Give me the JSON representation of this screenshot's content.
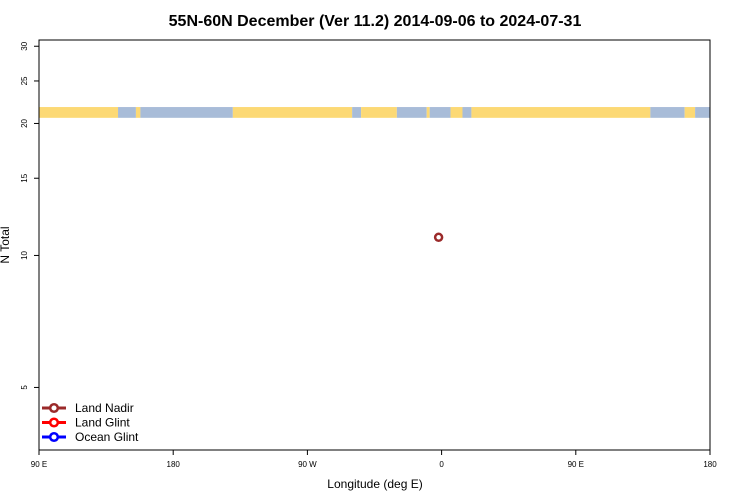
{
  "chart_data": {
    "type": "scatter",
    "title": "55N-60N December (Ver 11.2)   2014-09-06 to 2024-07-31",
    "xlabel": "Longitude (deg E)",
    "ylabel": "N Total",
    "x_axis_note": "longitude runs from 90 E through 180, 90 W, 0, 90 E to 180 (wrapped)",
    "xlim": [
      90,
      540
    ],
    "x_ticks": [
      {
        "value": 90,
        "label": "90 E"
      },
      {
        "value": 180,
        "label": "180"
      },
      {
        "value": 270,
        "label": "90 W"
      },
      {
        "value": 360,
        "label": "0"
      },
      {
        "value": 450,
        "label": "90 E"
      },
      {
        "value": 540,
        "label": "180"
      }
    ],
    "y_scale": "log",
    "ylim": [
      3.6,
      31
    ],
    "y_ticks": [
      5,
      10,
      15,
      20,
      25,
      30
    ],
    "grid": false,
    "legend_position": "bottom-left",
    "series": [
      {
        "name": "Land Nadir",
        "color": "#9b2a2a",
        "points": [
          {
            "lon": -2,
            "n": 11
          }
        ]
      },
      {
        "name": "Land Glint",
        "color": "#ff0000",
        "points": []
      },
      {
        "name": "Ocean Glint",
        "color": "#0000ff",
        "points": []
      }
    ],
    "land_mask_strip": {
      "y_range": [
        20.6,
        21.8
      ],
      "land_color": "#fcd975",
      "ocean_color": "#a8bcd8",
      "segments": [
        {
          "start": 90,
          "end": 143,
          "type": "land"
        },
        {
          "start": 143,
          "end": 155,
          "type": "ocean"
        },
        {
          "start": 155,
          "end": 158,
          "type": "land"
        },
        {
          "start": 158,
          "end": 220,
          "type": "ocean"
        },
        {
          "start": 220,
          "end": 300,
          "type": "land"
        },
        {
          "start": 300,
          "end": 306,
          "type": "ocean"
        },
        {
          "start": 306,
          "end": 330,
          "type": "land"
        },
        {
          "start": 330,
          "end": 350,
          "type": "ocean"
        },
        {
          "start": 350,
          "end": 352,
          "type": "land"
        },
        {
          "start": 352,
          "end": 366,
          "type": "ocean"
        },
        {
          "start": 366,
          "end": 374,
          "type": "land"
        },
        {
          "start": 374,
          "end": 380,
          "type": "ocean"
        },
        {
          "start": 380,
          "end": 500,
          "type": "land"
        },
        {
          "start": 500,
          "end": 523,
          "type": "ocean"
        },
        {
          "start": 523,
          "end": 530,
          "type": "land"
        },
        {
          "start": 530,
          "end": 540,
          "type": "ocean"
        }
      ]
    }
  }
}
